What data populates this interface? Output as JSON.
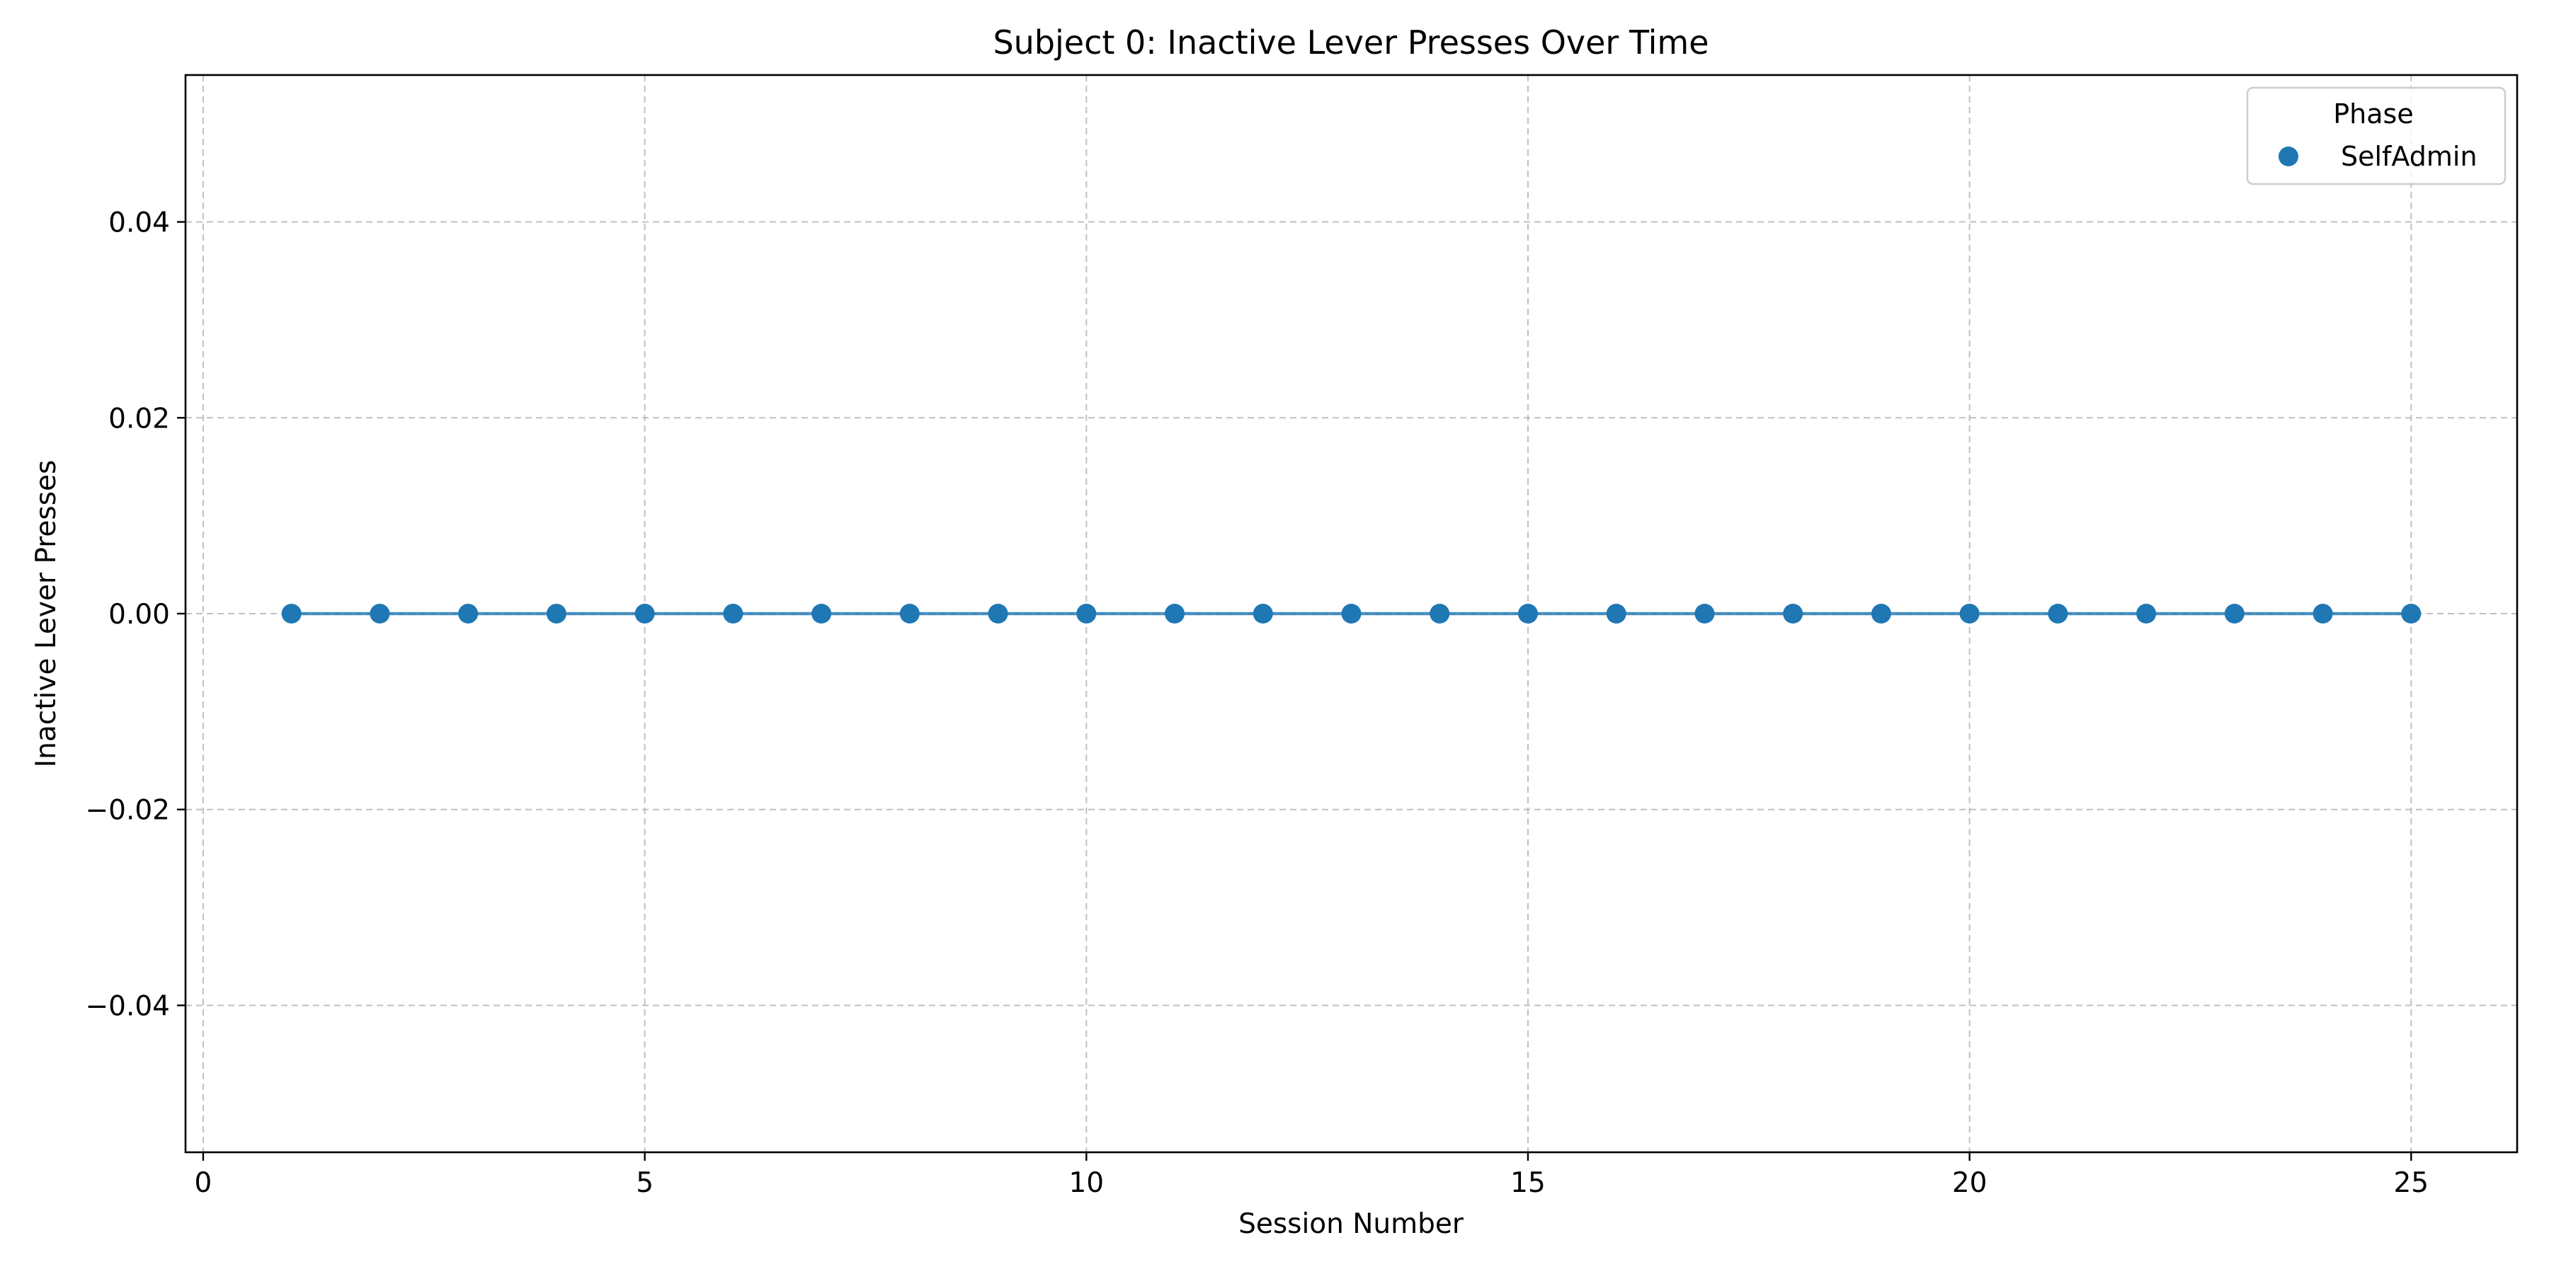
{
  "chart_data": {
    "type": "line",
    "title": "Subject 0: Inactive Lever Presses Over Time",
    "xlabel": "Session Number",
    "ylabel": "Inactive Lever Presses",
    "xlim": [
      -0.2,
      26.2
    ],
    "ylim": [
      -0.055,
      0.055
    ],
    "xticks": [
      0,
      5,
      10,
      15,
      20,
      25
    ],
    "xtick_labels": [
      "0",
      "5",
      "10",
      "15",
      "20",
      "25"
    ],
    "yticks": [
      -0.04,
      -0.02,
      0.0,
      0.02,
      0.04
    ],
    "ytick_labels": [
      "−0.04",
      "−0.02",
      "0.00",
      "0.02",
      "0.04"
    ],
    "grid": true,
    "legend": {
      "title": "Phase",
      "placement": "top-right"
    },
    "x": [
      1,
      2,
      3,
      4,
      5,
      6,
      7,
      8,
      9,
      10,
      11,
      12,
      13,
      14,
      15,
      16,
      17,
      18,
      19,
      20,
      21,
      22,
      23,
      24,
      25
    ],
    "series": [
      {
        "name": "SelfAdmin",
        "color": "#1f77b4",
        "values": [
          0,
          0,
          0,
          0,
          0,
          0,
          0,
          0,
          0,
          0,
          0,
          0,
          0,
          0,
          0,
          0,
          0,
          0,
          0,
          0,
          0,
          0,
          0,
          0,
          0
        ]
      }
    ]
  }
}
